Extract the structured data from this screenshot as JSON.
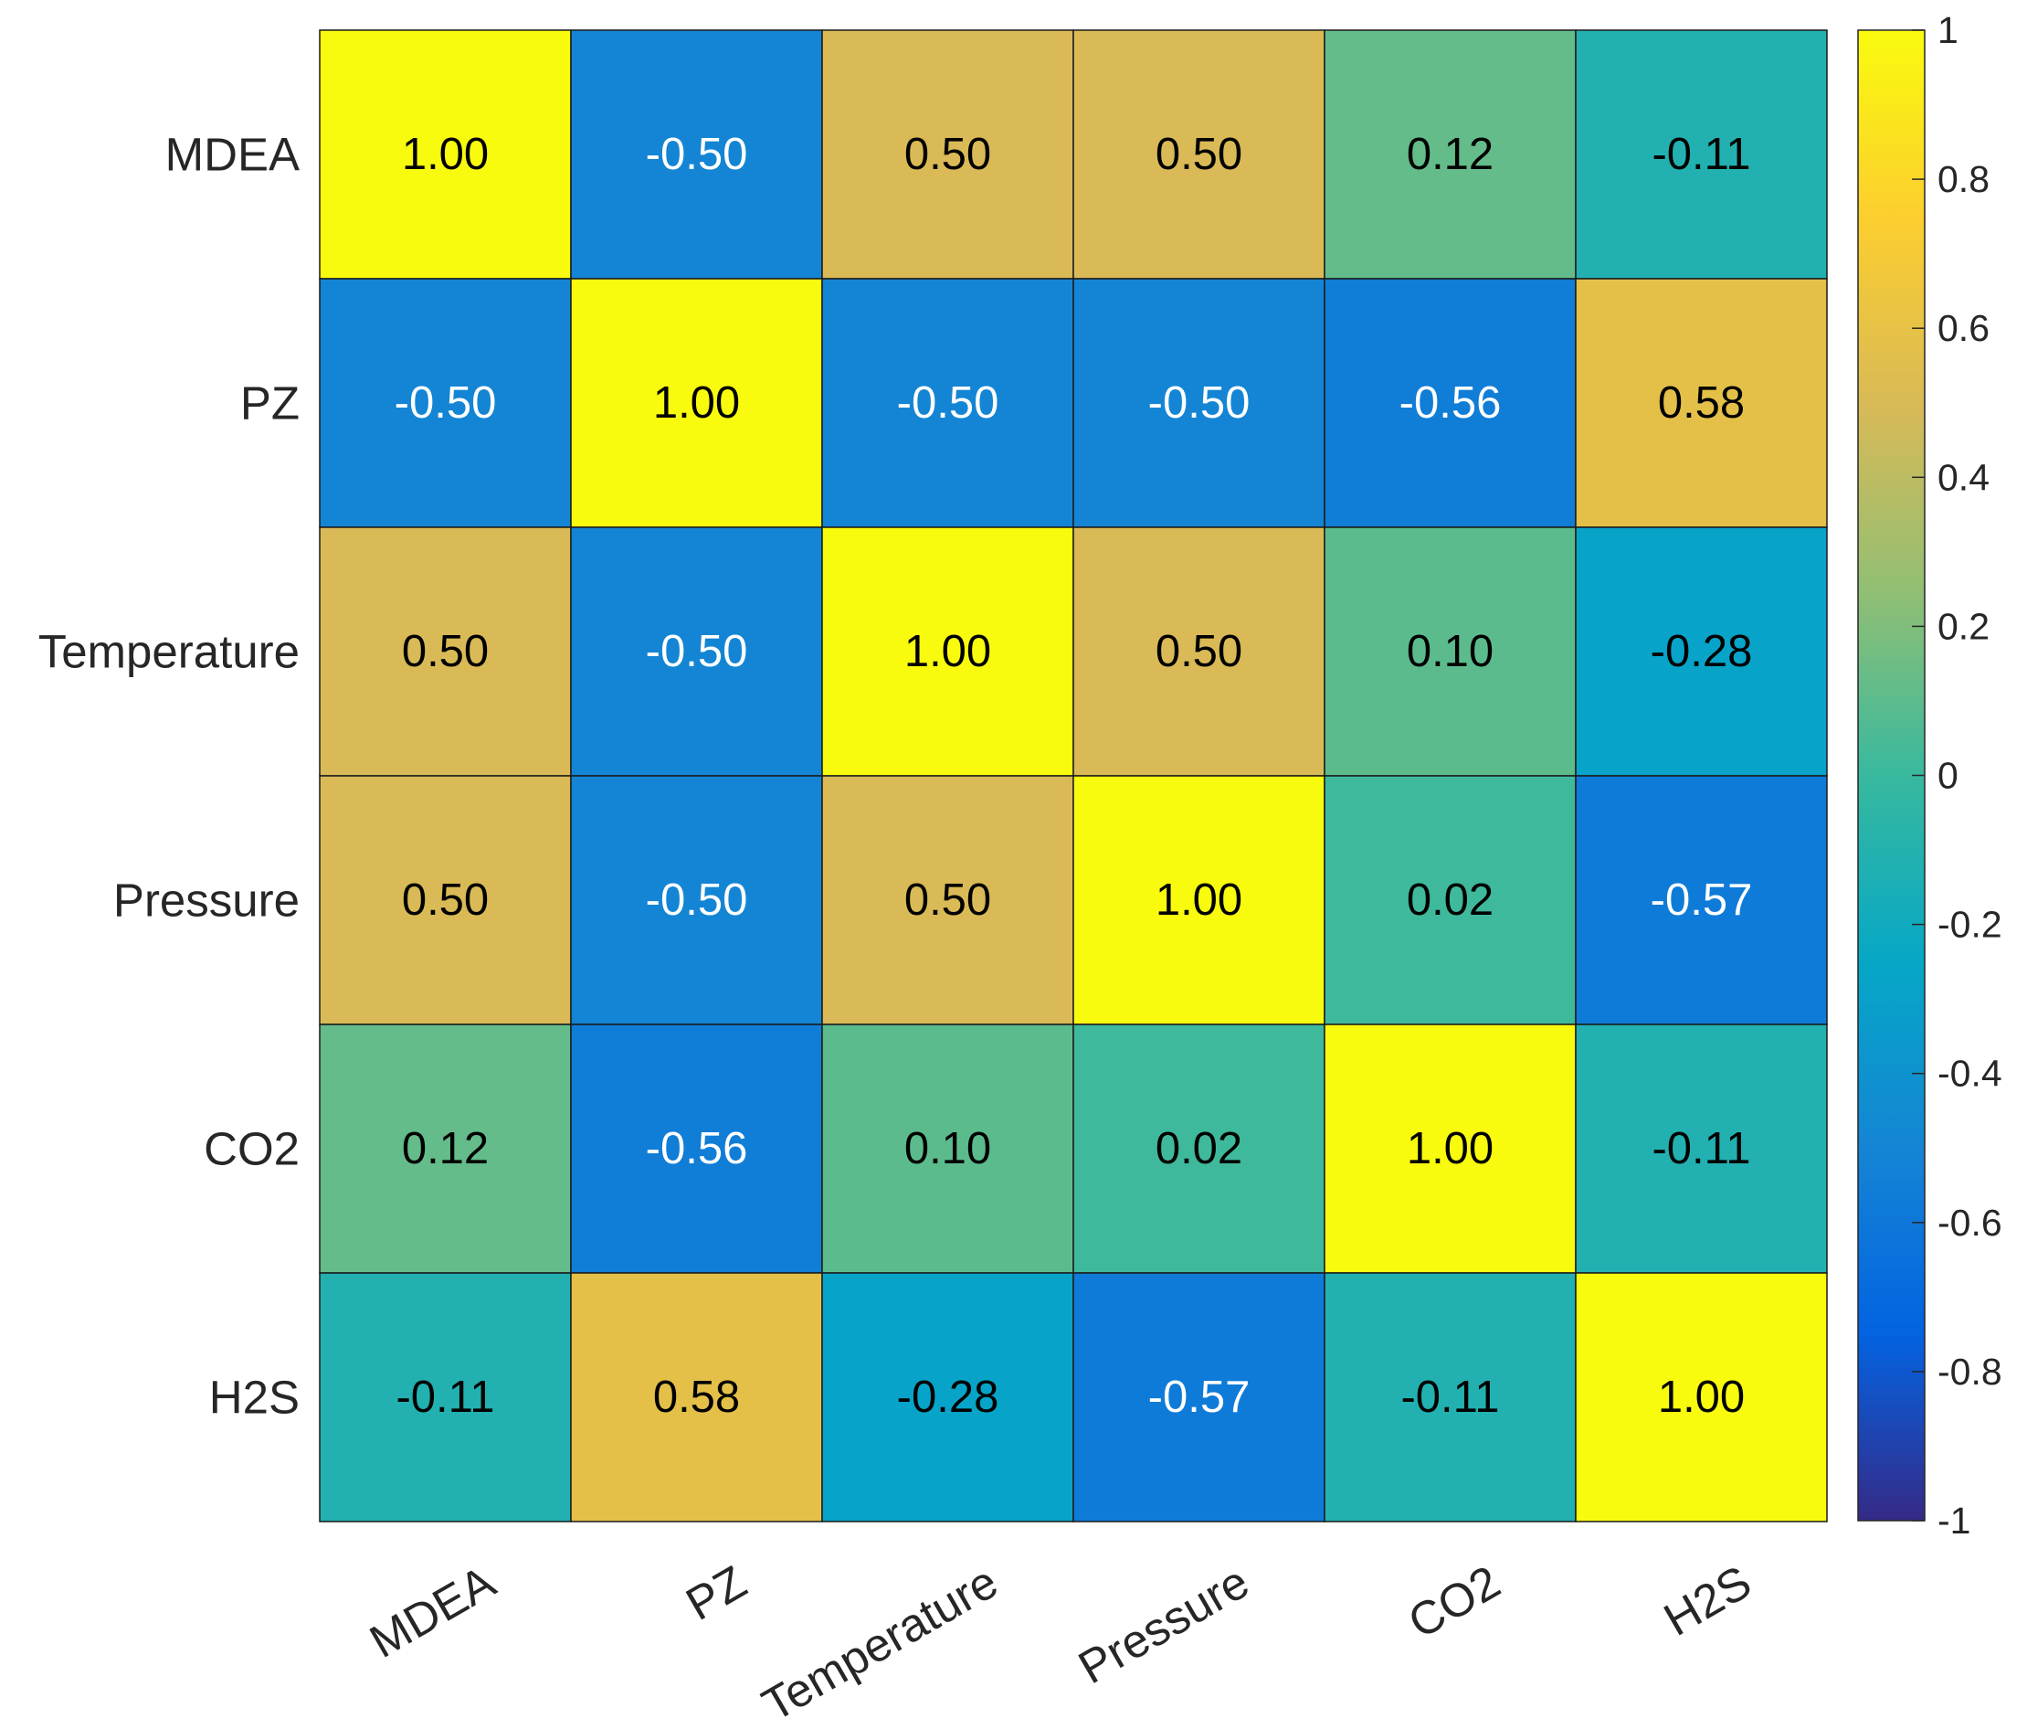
{
  "chart_data": {
    "type": "heatmap",
    "title": "",
    "xlabel": "",
    "ylabel": "",
    "variables": [
      "MDEA",
      "PZ",
      "Temperature",
      "Pressure",
      "CO2",
      "H2S"
    ],
    "values": [
      [
        1.0,
        -0.5,
        0.5,
        0.5,
        0.12,
        -0.11
      ],
      [
        -0.5,
        1.0,
        -0.5,
        -0.5,
        -0.56,
        0.58
      ],
      [
        0.5,
        -0.5,
        1.0,
        0.5,
        0.1,
        -0.28
      ],
      [
        0.5,
        -0.5,
        0.5,
        1.0,
        0.02,
        -0.57
      ],
      [
        0.12,
        -0.56,
        0.1,
        0.02,
        1.0,
        -0.11
      ],
      [
        -0.11,
        0.58,
        -0.28,
        -0.57,
        -0.11,
        1.0
      ]
    ],
    "cell_labels": [
      [
        "1.00",
        "-0.50",
        "0.50",
        "0.50",
        "0.12",
        "-0.11"
      ],
      [
        "-0.50",
        "1.00",
        "-0.50",
        "-0.50",
        "-0.56",
        "0.58"
      ],
      [
        "0.50",
        "-0.50",
        "1.00",
        "0.50",
        "0.10",
        "-0.28"
      ],
      [
        "0.50",
        "-0.50",
        "0.50",
        "1.00",
        "0.02",
        "-0.57"
      ],
      [
        "0.12",
        "-0.56",
        "0.10",
        "0.02",
        "1.00",
        "-0.11"
      ],
      [
        "-0.11",
        "0.58",
        "-0.28",
        "-0.57",
        "-0.11",
        "1.00"
      ]
    ],
    "colorbar": {
      "colormap": "parula",
      "clim": [
        -1,
        1
      ],
      "ticks": [
        -1,
        -0.8,
        -0.6,
        -0.4,
        -0.2,
        0,
        0.2,
        0.4,
        0.6,
        0.8,
        1
      ],
      "tick_labels": [
        "-1",
        "-0.8",
        "-0.6",
        "-0.4",
        "-0.2",
        "0",
        "0.2",
        "0.4",
        "0.6",
        "0.8",
        "1"
      ]
    },
    "text_colors": {
      "dark": "#000000",
      "light": "#ffffff"
    }
  }
}
